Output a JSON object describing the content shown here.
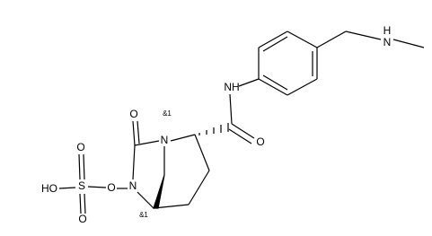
{
  "atoms": [
    "NH",
    "N",
    "H",
    "O",
    "O",
    "N",
    "N",
    "O",
    "S",
    "O",
    "O",
    "HO"
  ],
  "stereo_labels": [
    "&1",
    "&1"
  ]
}
